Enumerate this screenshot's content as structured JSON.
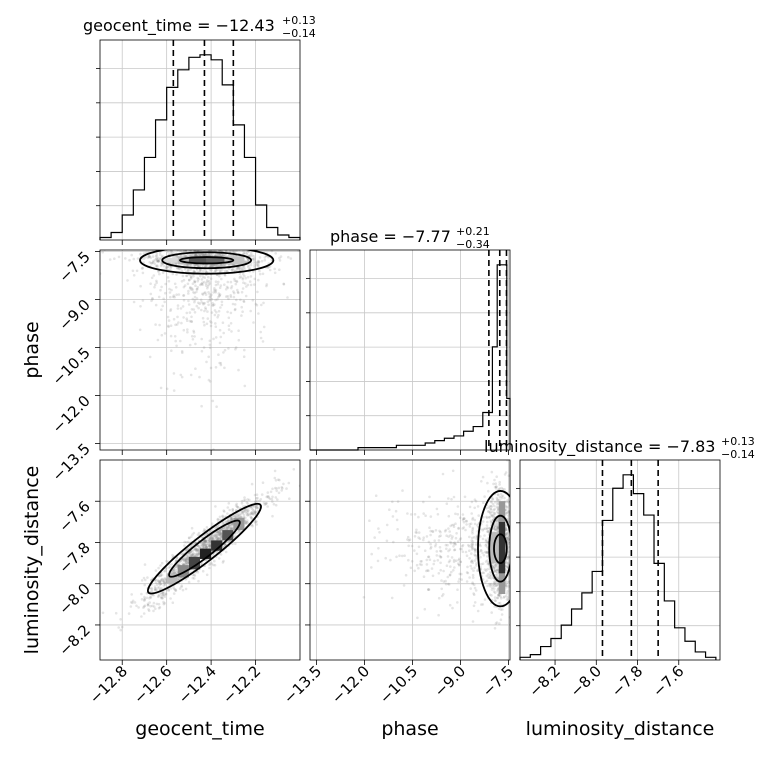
{
  "chart_data": {
    "type": "corner",
    "parameters": [
      "geocent_time",
      "phase",
      "luminosity_distance"
    ],
    "titles": [
      {
        "param": "geocent_time",
        "label": "geocent_time",
        "median": "−12.43",
        "plus": "+0.13",
        "minus": "−0.14"
      },
      {
        "param": "phase",
        "label": "phase",
        "median": "−7.77",
        "plus": "+0.21",
        "minus": "−0.34"
      },
      {
        "param": "luminosity_distance",
        "label": "luminosity_distance",
        "median": "−7.83",
        "plus": "+0.13",
        "minus": "−0.14"
      }
    ],
    "ranges": {
      "geocent_time": [
        -12.9,
        -12.0
      ],
      "phase": [
        -13.7,
        -7.45
      ],
      "luminosity_distance": [
        -8.37,
        -7.4
      ]
    },
    "ticks": {
      "geocent_time": [
        -12.8,
        -12.6,
        -12.4,
        -12.2
      ],
      "geocent_time_labels": [
        "−12.8",
        "−12.6",
        "−12.4",
        "−12.2"
      ],
      "phase": [
        -13.5,
        -12.0,
        -10.5,
        -9.0,
        -7.5
      ],
      "phase_labels": [
        "−13.5",
        "−12.0",
        "−10.5",
        "−9.0",
        "−7.5"
      ],
      "luminosity_distance": [
        -8.2,
        -8.0,
        -7.8,
        -7.6
      ],
      "luminosity_distance_labels": [
        "−8.2",
        "−8.0",
        "−7.8",
        "−7.6"
      ]
    },
    "quantiles": {
      "geocent_time": [
        -12.57,
        -12.43,
        -12.3
      ],
      "phase": [
        -8.11,
        -7.77,
        -7.56
      ],
      "luminosity_distance": [
        -7.97,
        -7.83,
        -7.7
      ]
    },
    "histograms": {
      "geocent_time": {
        "edges": [
          -12.9,
          -12.85,
          -12.8,
          -12.75,
          -12.7,
          -12.65,
          -12.6,
          -12.55,
          -12.5,
          -12.45,
          -12.4,
          -12.35,
          -12.3,
          -12.25,
          -12.2,
          -12.15,
          -12.1,
          -12.05,
          -12.0
        ],
        "counts": [
          1,
          3,
          10,
          20,
          33,
          48,
          61,
          68,
          73,
          74,
          72,
          62,
          46,
          33,
          14,
          5,
          2,
          1
        ]
      },
      "phase": {
        "edges": [
          -13.7,
          -13.4,
          -13.1,
          -12.8,
          -12.5,
          -12.2,
          -11.9,
          -11.6,
          -11.3,
          -11.0,
          -10.7,
          -10.4,
          -10.1,
          -9.8,
          -9.5,
          -9.2,
          -8.9,
          -8.6,
          -8.3,
          -8.0,
          -7.85,
          -7.7,
          -7.55,
          -7.45
        ],
        "counts": [
          0,
          0,
          0,
          0,
          0,
          1,
          1,
          1,
          1,
          2,
          2,
          2,
          3,
          4,
          5,
          6,
          8,
          10,
          16,
          44,
          79,
          79,
          22
        ]
      },
      "luminosity_distance": {
        "edges": [
          -8.37,
          -8.32,
          -8.27,
          -8.22,
          -8.17,
          -8.12,
          -8.07,
          -8.02,
          -7.97,
          -7.92,
          -7.87,
          -7.82,
          -7.77,
          -7.72,
          -7.67,
          -7.62,
          -7.57,
          -7.52,
          -7.47,
          -7.42
        ],
        "counts": [
          1,
          2,
          5,
          8,
          13,
          19,
          25,
          33,
          52,
          64,
          69,
          62,
          54,
          36,
          22,
          12,
          7,
          3,
          1
        ]
      }
    },
    "grid": true
  }
}
